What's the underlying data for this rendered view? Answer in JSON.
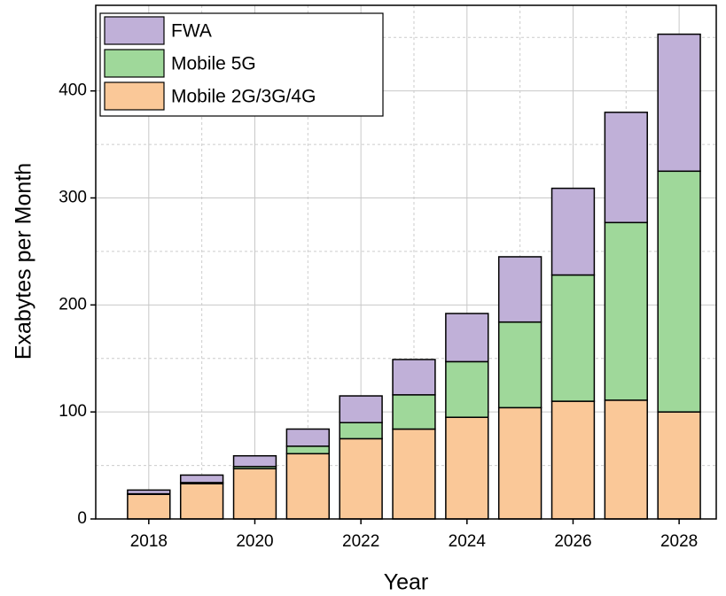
{
  "chart_data": {
    "type": "stacked_bar",
    "xlabel": "Year",
    "ylabel": "Exabytes per Month",
    "x": [
      2018,
      2019,
      2020,
      2021,
      2022,
      2023,
      2024,
      2025,
      2026,
      2027,
      2028
    ],
    "series": [
      {
        "name": "Mobile 2G/3G/4G",
        "color": "#fac898",
        "values": [
          23,
          33,
          47,
          61,
          75,
          84,
          95,
          104,
          110,
          111,
          100
        ]
      },
      {
        "name": "Mobile 5G",
        "color": "#9fd89a",
        "values": [
          0.5,
          1,
          2,
          7,
          15,
          32,
          52,
          80,
          118,
          166,
          225
        ]
      },
      {
        "name": "FWA",
        "color": "#c0b0d8",
        "values": [
          3.5,
          7,
          10,
          16,
          25,
          33,
          45,
          61,
          81,
          103,
          128
        ]
      }
    ],
    "xlim": [
      2017,
      2028.7
    ],
    "ylim": [
      0,
      480
    ],
    "xticks": [
      2018,
      2020,
      2022,
      2024,
      2026,
      2028
    ],
    "yticks": [
      0,
      100,
      200,
      300,
      400
    ],
    "grid": true,
    "legend": "upper left"
  }
}
